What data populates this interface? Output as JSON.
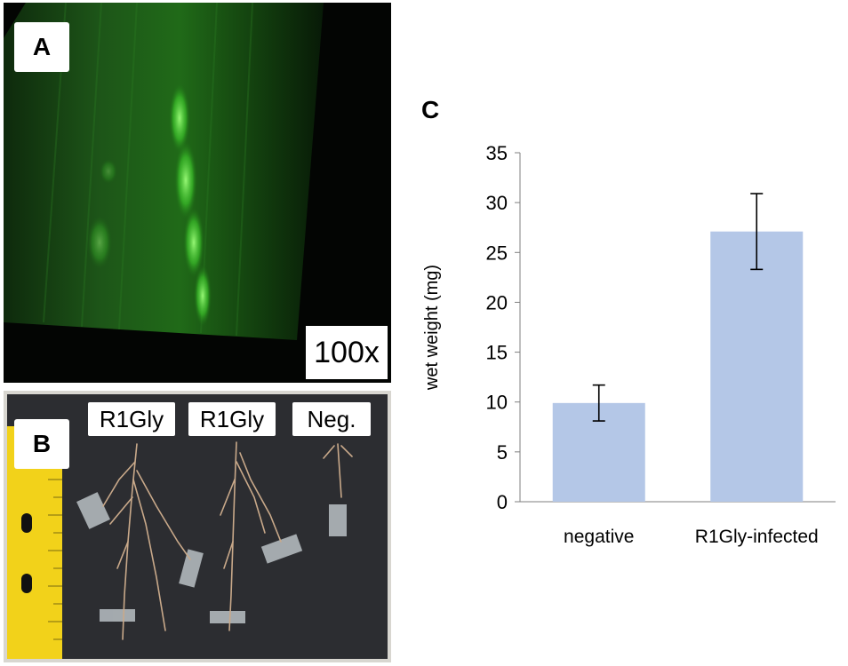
{
  "panel_a": {
    "letter": "A",
    "magnification": "100x"
  },
  "panel_b": {
    "letter": "B",
    "samples": [
      "R1Gly",
      "R1Gly",
      "Neg."
    ]
  },
  "panel_c": {
    "letter": "C"
  },
  "chart_data": {
    "type": "bar",
    "categories": [
      "negative",
      "R1Gly-infected"
    ],
    "values": [
      9.9,
      27.1
    ],
    "error": [
      1.8,
      3.8
    ],
    "ylabel": "wet weight (mg)",
    "xlabel": "",
    "ylim": [
      0,
      35
    ],
    "yticks": [
      0,
      5,
      10,
      15,
      20,
      25,
      30,
      35
    ],
    "grid": false,
    "bar_color": "#b4c7e7"
  }
}
